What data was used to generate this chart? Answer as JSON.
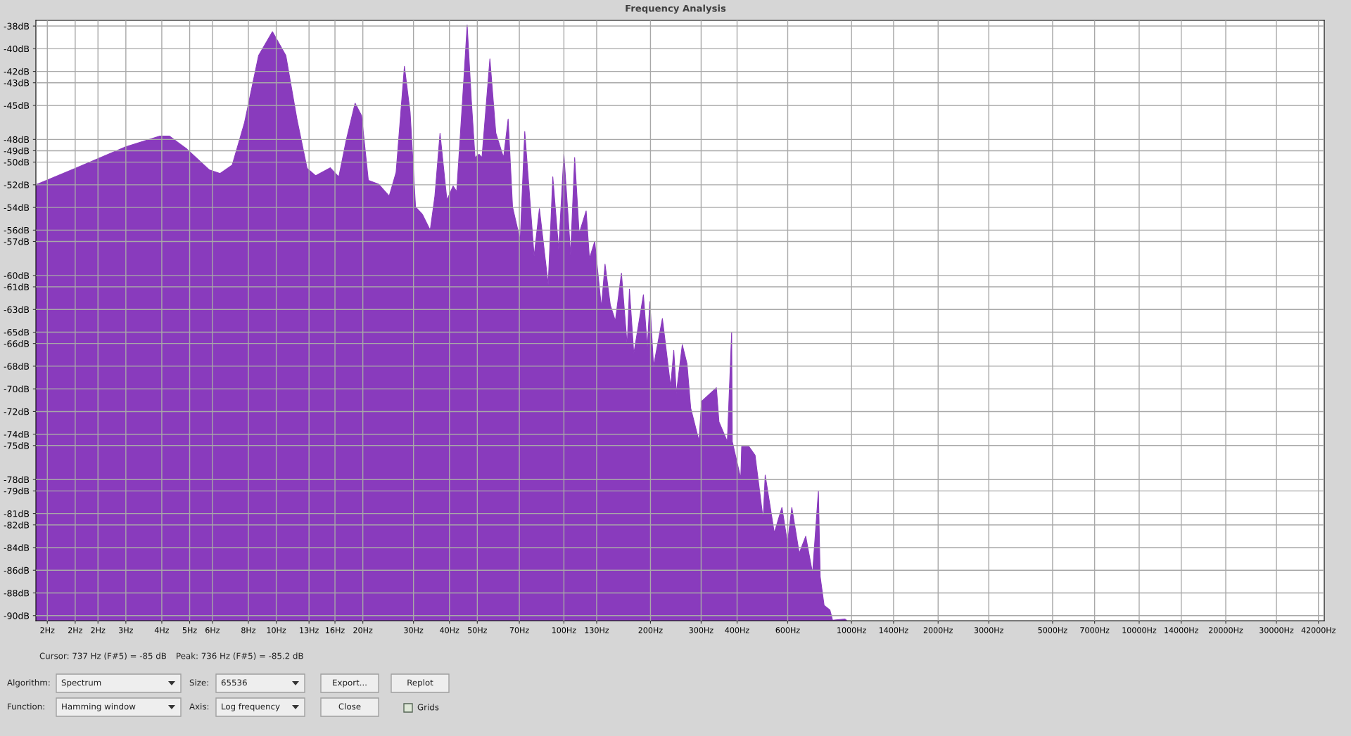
{
  "chart_data": {
    "type": "area",
    "title": "Frequency Analysis",
    "color": "#893bbd",
    "grid": true,
    "legend": false,
    "x": [
      1.46,
      2.0,
      2.96,
      3.94,
      4.25,
      4.89,
      5.86,
      6.38,
      7.03,
      7.76,
      8.68,
      9.7,
      10.8,
      11.8,
      12.8,
      13.7,
      15.4,
      16.5,
      17.5,
      18.8,
      19.8,
      20.9,
      22.7,
      24.7,
      26.1,
      27.9,
      29.2,
      30.5,
      32.2,
      34.3,
      35.6,
      37.1,
      39.2,
      41.2,
      42.4,
      44.4,
      46.1,
      47.7,
      49.1,
      50.7,
      51.9,
      55.3,
      58.0,
      61.7,
      64.0,
      66.3,
      70.5,
      73.1,
      78.8,
      82.2,
      88.2,
      91.5,
      95.9,
      100,
      104,
      105.5,
      109,
      113,
      119.5,
      122.7,
      128,
      135,
      139,
      145,
      151,
      158.5,
      166,
      169,
      175,
      189,
      195,
      199,
      205,
      220,
      235,
      241,
      246,
      258,
      268,
      276,
      295,
      301,
      339,
      346,
      370,
      383,
      385,
      412,
      415,
      440,
      462,
      493,
      501,
      539,
      573,
      599,
      620,
      658,
      693,
      732,
      767,
      778,
      803,
      841,
      859,
      949,
      960
    ],
    "values": [
      -52.0,
      -50.55,
      -48.7,
      -47.7,
      -47.7,
      -48.85,
      -50.7,
      -51.0,
      -50.25,
      -46.5,
      -40.6,
      -38.5,
      -40.6,
      -46.2,
      -50.55,
      -51.2,
      -50.5,
      -51.3,
      -48.1,
      -44.8,
      -45.9,
      -51.6,
      -51.95,
      -53.0,
      -50.9,
      -41.55,
      -45.6,
      -53.95,
      -54.6,
      -56.0,
      -53.0,
      -47.45,
      -53.35,
      -52.1,
      -52.6,
      -44.65,
      -37.9,
      -44.65,
      -49.6,
      -49.3,
      -49.6,
      -40.9,
      -47.45,
      -49.6,
      -46.2,
      -53.95,
      -56.9,
      -47.3,
      -58.3,
      -54.1,
      -60.8,
      -51.3,
      -57.7,
      -49.3,
      -55.7,
      -58.2,
      -49.6,
      -56.3,
      -54.3,
      -58.5,
      -57.0,
      -62.8,
      -59.0,
      -62.6,
      -64.0,
      -59.8,
      -66.2,
      -61.2,
      -66.9,
      -61.7,
      -66.35,
      -62.3,
      -68.0,
      -63.8,
      -69.8,
      -66.6,
      -70.4,
      -66.1,
      -67.8,
      -71.7,
      -74.6,
      -71.1,
      -69.9,
      -72.9,
      -74.65,
      -65.0,
      -74.65,
      -77.9,
      -75.1,
      -75.1,
      -75.85,
      -81.5,
      -77.6,
      -82.7,
      -80.45,
      -83.6,
      -80.45,
      -84.5,
      -83.0,
      -86.25,
      -79.0,
      -86.55,
      -89.1,
      -89.5,
      -90.4,
      -90.3,
      -90.4
    ],
    "log": "x",
    "xlim": [
      1.46,
      44000
    ],
    "ylim": [
      -90.45,
      -37.5
    ],
    "xticks": [
      {
        "value": 1.6,
        "label": "2Hz"
      },
      {
        "value": 2,
        "label": "2Hz"
      },
      {
        "value": 2.4,
        "label": "2Hz"
      },
      {
        "value": 3,
        "label": "3Hz"
      },
      {
        "value": 4,
        "label": "4Hz"
      },
      {
        "value": 5,
        "label": "5Hz"
      },
      {
        "value": 6,
        "label": "6Hz"
      },
      {
        "value": 8,
        "label": "8Hz"
      },
      {
        "value": 10,
        "label": "10Hz"
      },
      {
        "value": 13,
        "label": "13Hz"
      },
      {
        "value": 16,
        "label": "16Hz"
      },
      {
        "value": 20,
        "label": "20Hz"
      },
      {
        "value": 30,
        "label": "30Hz"
      },
      {
        "value": 40,
        "label": "40Hz"
      },
      {
        "value": 50,
        "label": "50Hz"
      },
      {
        "value": 70,
        "label": "70Hz"
      },
      {
        "value": 100,
        "label": "100Hz"
      },
      {
        "value": 130,
        "label": "130Hz"
      },
      {
        "value": 200,
        "label": "200Hz"
      },
      {
        "value": 300,
        "label": "300Hz"
      },
      {
        "value": 400,
        "label": "400Hz"
      },
      {
        "value": 600,
        "label": "600Hz"
      },
      {
        "value": 1000,
        "label": "1000Hz"
      },
      {
        "value": 1400,
        "label": "1400Hz"
      },
      {
        "value": 2000,
        "label": "2000Hz"
      },
      {
        "value": 3000,
        "label": "3000Hz"
      },
      {
        "value": 5000,
        "label": "5000Hz"
      },
      {
        "value": 7000,
        "label": "7000Hz"
      },
      {
        "value": 10000,
        "label": "10000Hz"
      },
      {
        "value": 14000,
        "label": "14000Hz"
      },
      {
        "value": 20000,
        "label": "20000Hz"
      },
      {
        "value": 30000,
        "label": "30000Hz"
      },
      {
        "value": 42000,
        "label": "42000Hz"
      }
    ],
    "yticks": [
      {
        "value": -38,
        "label": "-38dB"
      },
      {
        "value": -40,
        "label": "-40dB"
      },
      {
        "value": -42,
        "label": "-42dB"
      },
      {
        "value": -43,
        "label": "-43dB"
      },
      {
        "value": -45,
        "label": "-45dB"
      },
      {
        "value": -48,
        "label": "-48dB"
      },
      {
        "value": -49,
        "label": "-49dB"
      },
      {
        "value": -50,
        "label": "-50dB"
      },
      {
        "value": -52,
        "label": "-52dB"
      },
      {
        "value": -54,
        "label": "-54dB"
      },
      {
        "value": -56,
        "label": "-56dB"
      },
      {
        "value": -57,
        "label": "-57dB"
      },
      {
        "value": -60,
        "label": "-60dB"
      },
      {
        "value": -61,
        "label": "-61dB"
      },
      {
        "value": -63,
        "label": "-63dB"
      },
      {
        "value": -65,
        "label": "-65dB"
      },
      {
        "value": -66,
        "label": "-66dB"
      },
      {
        "value": -68,
        "label": "-68dB"
      },
      {
        "value": -70,
        "label": "-70dB"
      },
      {
        "value": -72,
        "label": "-72dB"
      },
      {
        "value": -74,
        "label": "-74dB"
      },
      {
        "value": -75,
        "label": "-75dB"
      },
      {
        "value": -78,
        "label": "-78dB"
      },
      {
        "value": -79,
        "label": "-79dB"
      },
      {
        "value": -81,
        "label": "-81dB"
      },
      {
        "value": -82,
        "label": "-82dB"
      },
      {
        "value": -84,
        "label": "-84dB"
      },
      {
        "value": -86,
        "label": "-86dB"
      },
      {
        "value": -88,
        "label": "-88dB"
      },
      {
        "value": -90,
        "label": "-90dB"
      }
    ],
    "annotations": [
      "Cursor: 737 Hz (F#5) = -85 dB",
      "Peak: 736 Hz (F#5) = -85.2 dB",
      "Algorithm:",
      "Spectrum",
      "Size:",
      "65536",
      "Export...",
      "Replot",
      "Function:",
      "Hamming window",
      "Axis:",
      "Log frequency",
      "Close",
      "Grids"
    ]
  }
}
